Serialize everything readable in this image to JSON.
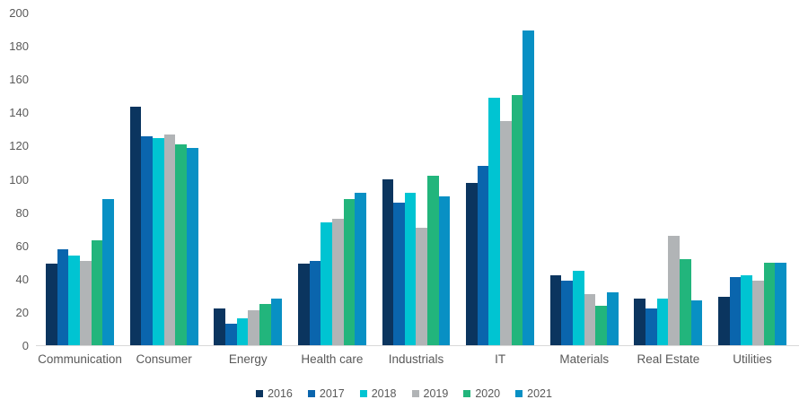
{
  "chart_data": {
    "type": "bar",
    "title": "",
    "xlabel": "",
    "ylabel": "",
    "categories": [
      "Communication",
      "Consumer",
      "Energy",
      "Health care",
      "Industrials",
      "IT",
      "Materials",
      "Real Estate",
      "Utilities"
    ],
    "series": [
      {
        "name": "2016",
        "color": "#0b355f",
        "values": [
          49,
          144,
          22,
          49,
          100,
          98,
          42,
          28,
          29
        ]
      },
      {
        "name": "2017",
        "color": "#0a65ad",
        "values": [
          58,
          126,
          13,
          51,
          86,
          108,
          39,
          22,
          41
        ]
      },
      {
        "name": "2018",
        "color": "#00c4d2",
        "values": [
          54,
          125,
          16,
          74,
          92,
          149,
          45,
          28,
          42
        ]
      },
      {
        "name": "2019",
        "color": "#b1b4b6",
        "values": [
          51,
          127,
          21,
          76,
          71,
          135,
          31,
          66,
          39
        ]
      },
      {
        "name": "2020",
        "color": "#22b57c",
        "values": [
          63,
          121,
          25,
          88,
          102,
          151,
          24,
          52,
          50
        ]
      },
      {
        "name": "2021",
        "color": "#0890c4",
        "values": [
          88,
          119,
          28,
          92,
          90,
          190,
          32,
          27,
          50
        ]
      }
    ],
    "ylim": [
      0,
      200
    ],
    "yticks": [
      0,
      20,
      40,
      60,
      80,
      100,
      120,
      140,
      160,
      180,
      200
    ],
    "grid": false,
    "legend_position": "bottom",
    "axis_text_color": "#595959",
    "baseline_color": "#d9d9d9",
    "background_color": "#ffffff"
  }
}
